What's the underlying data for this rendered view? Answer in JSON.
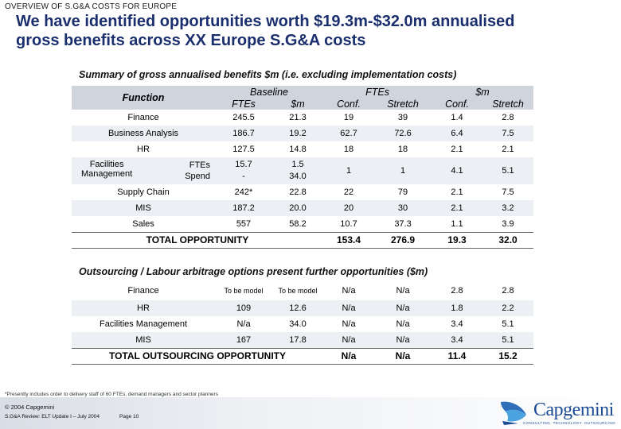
{
  "header": {
    "kicker": "OVERVIEW OF S.G&A COSTS FOR EUROPE",
    "title_line1": "We have identified opportunities worth $19.3m-$32.0m annualised",
    "title_line2": "gross benefits across XX Europe S.G&A costs"
  },
  "summary": {
    "title": "Summary of gross annualised benefits $m (i.e. excluding implementation costs)",
    "headers": {
      "function": "Function",
      "baseline": "Baseline",
      "ftes_group": "FTEs",
      "dollar_group": "$m",
      "ftes": "FTEs",
      "dollars": "$m",
      "conf": "Conf.",
      "stretch": "Stretch",
      "conf2": "Conf.",
      "stretch2": "Stretch"
    },
    "rows": [
      {
        "name": "Finance",
        "base_ftes": "245.5",
        "base_m": "21.3",
        "ftes_conf": "19",
        "ftes_stretch": "39",
        "m_conf": "1.4",
        "m_stretch": "2.8"
      },
      {
        "name": "Business Analysis",
        "base_ftes": "186.7",
        "base_m": "19.2",
        "ftes_conf": "62.7",
        "ftes_stretch": "72.6",
        "m_conf": "6.4",
        "m_stretch": "7.5"
      },
      {
        "name": "HR",
        "base_ftes": "127.5",
        "base_m": "14.8",
        "ftes_conf": "18",
        "ftes_stretch": "18",
        "m_conf": "2.1",
        "m_stretch": "2.1"
      }
    ],
    "fm": {
      "name_line1": "Facilities",
      "name_line2": "Management",
      "kind1": "FTEs",
      "kind2": "Spend",
      "ftes_base_ftes": "15.7",
      "ftes_base_m": "1.5",
      "spend_base_ftes": "-",
      "spend_base_m": "34.0",
      "ftes_conf": "1",
      "ftes_stretch": "1",
      "m_conf": "4.1",
      "m_stretch": "5.1"
    },
    "rows2": [
      {
        "name": "Supply Chain",
        "base_ftes": "242*",
        "base_m": "22.8",
        "ftes_conf": "22",
        "ftes_stretch": "79",
        "m_conf": "2.1",
        "m_stretch": "7.5"
      },
      {
        "name": "MIS",
        "base_ftes": "187.2",
        "base_m": "20.0",
        "ftes_conf": "20",
        "ftes_stretch": "30",
        "m_conf": "2.1",
        "m_stretch": "3.2"
      },
      {
        "name": "Sales",
        "base_ftes": "557",
        "base_m": "58.2",
        "ftes_conf": "10.7",
        "ftes_stretch": "37.3",
        "m_conf": "1.1",
        "m_stretch": "3.9"
      }
    ],
    "total": {
      "label": "TOTAL OPPORTUNITY",
      "ftes_conf": "153.4",
      "ftes_stretch": "276.9",
      "m_conf": "19.3",
      "m_stretch": "32.0"
    }
  },
  "outsourcing": {
    "title": "Outsourcing / Labour arbitrage options present further opportunities ($m)",
    "rows": [
      {
        "name": "Finance",
        "base_ftes": "To be model",
        "base_m": "To be model",
        "ftes_conf": "N/a",
        "ftes_stretch": "N/a",
        "m_conf": "2.8",
        "m_stretch": "2.8"
      },
      {
        "name": "HR",
        "base_ftes": "109",
        "base_m": "12.6",
        "ftes_conf": "N/a",
        "ftes_stretch": "N/a",
        "m_conf": "1.8",
        "m_stretch": "2.2"
      },
      {
        "name": "Facilities Management",
        "base_ftes": "N/a",
        "base_m": "34.0",
        "ftes_conf": "N/a",
        "ftes_stretch": "N/a",
        "m_conf": "3.4",
        "m_stretch": "5.1"
      },
      {
        "name": "MIS",
        "base_ftes": "167",
        "base_m": "17.8",
        "ftes_conf": "N/a",
        "ftes_stretch": "N/a",
        "m_conf": "3.4",
        "m_stretch": "5.1"
      }
    ],
    "total": {
      "label": "TOTAL OUTSOURCING OPPORTUNITY",
      "ftes_conf": "N/a",
      "ftes_stretch": "N/a",
      "m_conf": "11.4",
      "m_stretch": "15.2"
    }
  },
  "footer": {
    "footnote": "*Presently includes order to delivery staff of 60 FTEs, demand managers and sector planners",
    "copyright": "© 2004 Capgemini",
    "review": "S.G&A Review: ELT Update I – July 2004",
    "page": "Page 10",
    "logo_text": "Capgemini",
    "logo_tagline": "CONSULTING. TECHNOLOGY. OUTSOURCING"
  }
}
